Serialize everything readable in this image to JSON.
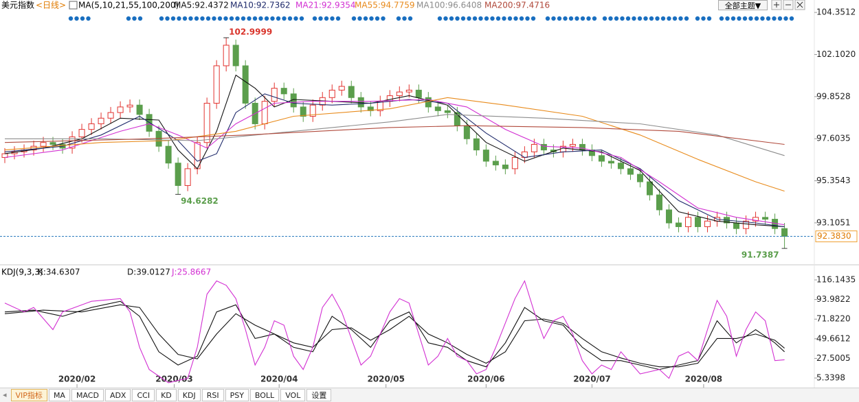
{
  "chart_data": [
    {
      "type": "candlestick",
      "title": "美元指数",
      "period": "<日线>",
      "indicator": "MA(5,10,21,55,100,200)",
      "xlim": [
        -0.5,
        84.1
      ],
      "ylim": [
        90.9,
        104.65
      ],
      "yticks": [
        104.3512,
        {
          "value": 102.102,
          "label": "102.1020"
        },
        99.8528,
        97.6035,
        95.3543,
        93.1051
      ],
      "up_color": "#e2322e",
      "down_color": "#5b9e4c",
      "candles": {
        "open": [
          96.6,
          96.8,
          96.9,
          97.0,
          97.2,
          97.4,
          97.3,
          97.1,
          97.7,
          98.1,
          98.4,
          98.7,
          99.0,
          99.3,
          99.4,
          98.9,
          98.0,
          97.2,
          96.3,
          95.1,
          96.0,
          97.4,
          99.5,
          101.5,
          102.6,
          101.5,
          99.5,
          98.4,
          99.6,
          100.3,
          100.0,
          99.3,
          98.8,
          99.4,
          99.8,
          100.2,
          100.4,
          99.8,
          99.3,
          99.1,
          99.6,
          99.9,
          100.1,
          100.2,
          99.8,
          99.3,
          99.1,
          99.0,
          98.3,
          97.6,
          97.0,
          96.4,
          96.2,
          96.0,
          96.6,
          96.9,
          97.3,
          97.0,
          96.9,
          97.2,
          97.3,
          97.0,
          96.7,
          96.4,
          96.3,
          96.0,
          95.7,
          95.3,
          94.6,
          93.8,
          93.1,
          92.9,
          93.4,
          92.9,
          93.2,
          93.4,
          93.1,
          92.8,
          93.2,
          93.4,
          93.3,
          92.8
        ],
        "high": [
          97.1,
          97.2,
          97.3,
          97.5,
          97.7,
          97.7,
          97.6,
          98.0,
          98.4,
          98.7,
          99.0,
          99.3,
          99.6,
          99.7,
          99.7,
          99.2,
          98.3,
          97.5,
          96.6,
          96.3,
          97.7,
          99.8,
          101.8,
          102.9999,
          102.9,
          101.8,
          99.8,
          99.9,
          100.6,
          100.6,
          100.3,
          99.6,
          99.7,
          100.1,
          100.5,
          100.7,
          100.7,
          100.1,
          99.6,
          99.9,
          100.2,
          100.4,
          100.5,
          100.5,
          100.1,
          99.6,
          99.4,
          99.3,
          98.6,
          97.9,
          97.3,
          96.7,
          96.5,
          96.9,
          97.2,
          97.6,
          97.6,
          97.3,
          97.5,
          97.6,
          97.6,
          97.3,
          97.0,
          96.7,
          96.6,
          96.3,
          96.0,
          95.6,
          94.9,
          94.1,
          93.4,
          93.7,
          93.7,
          93.5,
          93.7,
          93.7,
          93.4,
          93.5,
          93.7,
          93.7,
          93.6,
          93.1
        ],
        "low": [
          96.3,
          96.5,
          96.6,
          96.7,
          96.9,
          97.0,
          96.8,
          96.8,
          97.4,
          97.8,
          98.1,
          98.4,
          98.7,
          99.0,
          98.6,
          97.7,
          96.9,
          96.0,
          94.6282,
          94.8,
          95.7,
          97.1,
          99.2,
          101.2,
          101.2,
          99.2,
          98.1,
          98.1,
          99.3,
          99.7,
          99.0,
          98.5,
          98.5,
          99.1,
          99.5,
          99.9,
          99.5,
          99.0,
          98.8,
          98.8,
          99.3,
          99.6,
          99.8,
          99.5,
          99.0,
          98.8,
          98.7,
          98.0,
          97.3,
          96.7,
          96.1,
          95.9,
          95.7,
          95.7,
          96.3,
          96.6,
          96.7,
          96.6,
          96.6,
          96.9,
          96.7,
          96.4,
          96.1,
          96.0,
          95.7,
          95.4,
          95.0,
          94.3,
          93.5,
          92.8,
          92.6,
          92.6,
          92.6,
          92.6,
          92.9,
          92.8,
          92.5,
          92.5,
          92.9,
          93.0,
          92.5,
          91.7387
        ],
        "close": [
          96.8,
          96.9,
          97.0,
          97.2,
          97.4,
          97.3,
          97.1,
          97.7,
          98.1,
          98.4,
          98.7,
          99.0,
          99.3,
          99.4,
          98.9,
          98.0,
          97.2,
          96.3,
          95.1,
          96.0,
          97.4,
          99.5,
          101.5,
          102.6,
          101.5,
          99.5,
          98.4,
          99.6,
          100.3,
          100.0,
          99.3,
          98.8,
          99.4,
          99.8,
          100.2,
          100.4,
          99.8,
          99.3,
          99.1,
          99.6,
          99.9,
          100.1,
          100.2,
          99.8,
          99.3,
          99.1,
          99.0,
          98.3,
          97.6,
          97.0,
          96.4,
          96.2,
          96.0,
          96.6,
          96.9,
          97.3,
          97.0,
          96.9,
          97.2,
          97.3,
          97.0,
          96.7,
          96.4,
          96.3,
          96.0,
          95.7,
          95.3,
          94.6,
          93.8,
          93.1,
          92.9,
          93.4,
          92.9,
          93.2,
          93.4,
          93.1,
          92.8,
          93.2,
          93.4,
          93.3,
          92.8,
          92.383
        ]
      },
      "annotations": [
        {
          "index": 23,
          "field": "high",
          "color": "#d9342b"
        },
        {
          "index": 18,
          "field": "low",
          "color": "#5b9e4c"
        },
        {
          "index": 81,
          "field": "low",
          "color": "#5b9e4c"
        }
      ],
      "last_price": {
        "value": 92.383,
        "label": "92.3830"
      },
      "series": [
        {
          "name": "MA5",
          "color": "#111111",
          "last": {
            "value": 92.4372,
            "label": "MA5:92.4372"
          },
          "x": [
            0,
            4,
            8,
            12,
            16,
            18,
            20,
            22,
            24,
            26,
            28,
            30,
            34,
            38,
            42,
            46,
            50,
            54,
            58,
            62,
            66,
            70,
            74,
            78,
            81
          ],
          "values": [
            96.8,
            97.1,
            97.6,
            98.7,
            98.6,
            97.0,
            96.0,
            98.0,
            101.0,
            100.3,
            99.3,
            99.7,
            99.6,
            99.5,
            99.9,
            99.4,
            97.4,
            96.4,
            97.1,
            96.9,
            95.9,
            93.7,
            93.2,
            93.0,
            92.9
          ]
        },
        {
          "name": "MA10",
          "color": "#1f2a6b",
          "last": {
            "value": 92.7362,
            "label": "MA10:92.7362"
          },
          "x": [
            0,
            6,
            10,
            14,
            18,
            20,
            22,
            24,
            27,
            30,
            34,
            38,
            42,
            46,
            50,
            54,
            58,
            62,
            66,
            70,
            74,
            78,
            81
          ],
          "values": [
            96.9,
            97.2,
            97.8,
            98.8,
            97.5,
            96.4,
            96.8,
            99.0,
            100.0,
            99.5,
            99.4,
            99.5,
            99.7,
            99.5,
            97.9,
            96.6,
            96.9,
            97.0,
            96.0,
            94.3,
            93.3,
            93.1,
            92.9
          ]
        },
        {
          "name": "MA21",
          "color": "#d22fd2",
          "last": {
            "value": 92.9354,
            "label": "MA21:92.9354"
          },
          "x": [
            0,
            6,
            12,
            15,
            18,
            21,
            24,
            28,
            32,
            38,
            44,
            48,
            52,
            56,
            60,
            64,
            68,
            72,
            76,
            81
          ],
          "values": [
            96.6,
            97.0,
            98.0,
            98.4,
            97.8,
            97.1,
            98.4,
            99.5,
            99.6,
            99.6,
            99.7,
            99.3,
            98.1,
            97.2,
            97.1,
            96.6,
            95.3,
            93.9,
            93.4,
            93.0
          ]
        },
        {
          "name": "MA55",
          "color": "#e88a1a",
          "last": {
            "value": 94.7759,
            "label": "MA55:94.7759"
          },
          "x": [
            0,
            10,
            17,
            24,
            30,
            40,
            46,
            52,
            60,
            66,
            72,
            78,
            81
          ],
          "values": [
            97.0,
            97.4,
            97.5,
            98.0,
            98.8,
            99.2,
            99.8,
            99.4,
            98.8,
            97.8,
            96.5,
            95.3,
            94.8
          ]
        },
        {
          "name": "MA100",
          "color": "#8c8c8c",
          "last": {
            "value": 96.6408,
            "label": "MA100:96.6408"
          },
          "x": [
            0,
            10,
            20,
            30,
            40,
            46,
            56,
            66,
            74,
            81
          ],
          "values": [
            97.6,
            97.6,
            97.5,
            98.0,
            98.5,
            98.9,
            98.7,
            98.4,
            97.8,
            96.7
          ]
        },
        {
          "name": "MA200",
          "color": "#b0483a",
          "last": {
            "value": 97.4716,
            "label": "MA200:97.4716"
          },
          "x": [
            0,
            15,
            25,
            40,
            48,
            60,
            70,
            81
          ],
          "values": [
            97.4,
            97.6,
            97.8,
            98.2,
            98.3,
            98.2,
            98.0,
            97.3
          ]
        }
      ]
    },
    {
      "type": "line",
      "title": "KDJ(9,3,3)",
      "xlim": [
        -0.5,
        84.1
      ],
      "ylim": [
        -1.6,
        130.1
      ],
      "yticks": [
        116.1435,
        93.9822,
        {
          "value": 71.822,
          "label": "71.8220"
        },
        49.6612,
        27.5005,
        5.3398
      ],
      "xticks": [
        {
          "value": 7.5,
          "label": "2020/02"
        },
        {
          "value": 17.6,
          "label": "2020/03"
        },
        {
          "value": 28.5,
          "label": "2020/04"
        },
        {
          "value": 39.6,
          "label": "2020/05"
        },
        {
          "value": 50,
          "label": "2020/06"
        },
        {
          "value": 61,
          "label": "2020/07"
        },
        {
          "value": 72.6,
          "label": "2020/08"
        }
      ],
      "series": [
        {
          "name": "K",
          "color": "#111111",
          "last": {
            "value": 34.6307,
            "label": "K:34.6307"
          },
          "x": [
            0,
            3,
            6,
            9,
            12,
            14,
            16,
            18,
            20,
            22,
            24,
            26,
            28,
            30,
            32,
            34,
            36,
            38,
            40,
            42,
            44,
            46,
            48,
            50,
            52,
            54,
            56,
            58,
            60,
            62,
            64,
            66,
            68,
            70,
            72,
            74,
            76,
            78,
            80,
            81
          ],
          "values": [
            80,
            82,
            75,
            85,
            92,
            75,
            35,
            20,
            30,
            80,
            88,
            50,
            55,
            40,
            35,
            75,
            60,
            40,
            70,
            80,
            45,
            40,
            25,
            18,
            45,
            85,
            70,
            65,
            40,
            25,
            25,
            20,
            15,
            20,
            25,
            70,
            45,
            60,
            45,
            35
          ]
        },
        {
          "name": "D",
          "color": "#111111",
          "last": {
            "value": 39.0127,
            "label": "D:39.0127"
          },
          "x": [
            0,
            4,
            8,
            12,
            14,
            16,
            18,
            20,
            22,
            24,
            26,
            28,
            30,
            32,
            34,
            36,
            38,
            40,
            42,
            44,
            46,
            48,
            50,
            52,
            54,
            56,
            58,
            60,
            62,
            64,
            66,
            68,
            70,
            72,
            74,
            76,
            78,
            80,
            81
          ],
          "values": [
            78,
            82,
            80,
            88,
            85,
            55,
            32,
            27,
            55,
            78,
            65,
            55,
            45,
            40,
            60,
            62,
            48,
            60,
            75,
            55,
            45,
            32,
            22,
            35,
            70,
            72,
            67,
            50,
            35,
            28,
            22,
            18,
            18,
            22,
            50,
            50,
            55,
            48,
            39
          ]
        },
        {
          "name": "J",
          "color": "#d22fd2",
          "last": {
            "value": 25.8667,
            "label": "J:25.8667"
          },
          "x": [
            0,
            2,
            3,
            5,
            6,
            9,
            12,
            13,
            14,
            15,
            17,
            19,
            20,
            21,
            22,
            23,
            24,
            25,
            26,
            27,
            28,
            29,
            30,
            31,
            32,
            33,
            34,
            35,
            36,
            37,
            38,
            40,
            41,
            42,
            43,
            44,
            45,
            46,
            47,
            48,
            49,
            50,
            51,
            53,
            54,
            55,
            56,
            57,
            58,
            59,
            60,
            61,
            62,
            63,
            64,
            66,
            68,
            69,
            70,
            71,
            72,
            73,
            74,
            75,
            76,
            77,
            78,
            79,
            80,
            81
          ],
          "values": [
            90,
            80,
            85,
            60,
            80,
            92,
            95,
            80,
            40,
            15,
            0,
            5,
            40,
            100,
            115,
            110,
            95,
            60,
            20,
            40,
            70,
            65,
            30,
            15,
            40,
            85,
            100,
            80,
            50,
            20,
            30,
            80,
            95,
            90,
            55,
            20,
            30,
            50,
            30,
            25,
            10,
            15,
            40,
            95,
            115,
            80,
            50,
            70,
            75,
            55,
            25,
            10,
            20,
            15,
            35,
            10,
            15,
            5,
            30,
            35,
            25,
            60,
            93,
            75,
            30,
            60,
            80,
            70,
            25,
            26
          ]
        }
      ]
    }
  ],
  "toolbar": {
    "theme": "全部主题▼",
    "tabs": [
      "VIP指标",
      "MA",
      "MACD",
      "ADX",
      "CCI",
      "KD",
      "KDJ",
      "RSI",
      "PSY",
      "BOLL",
      "VOL",
      "设置"
    ]
  }
}
